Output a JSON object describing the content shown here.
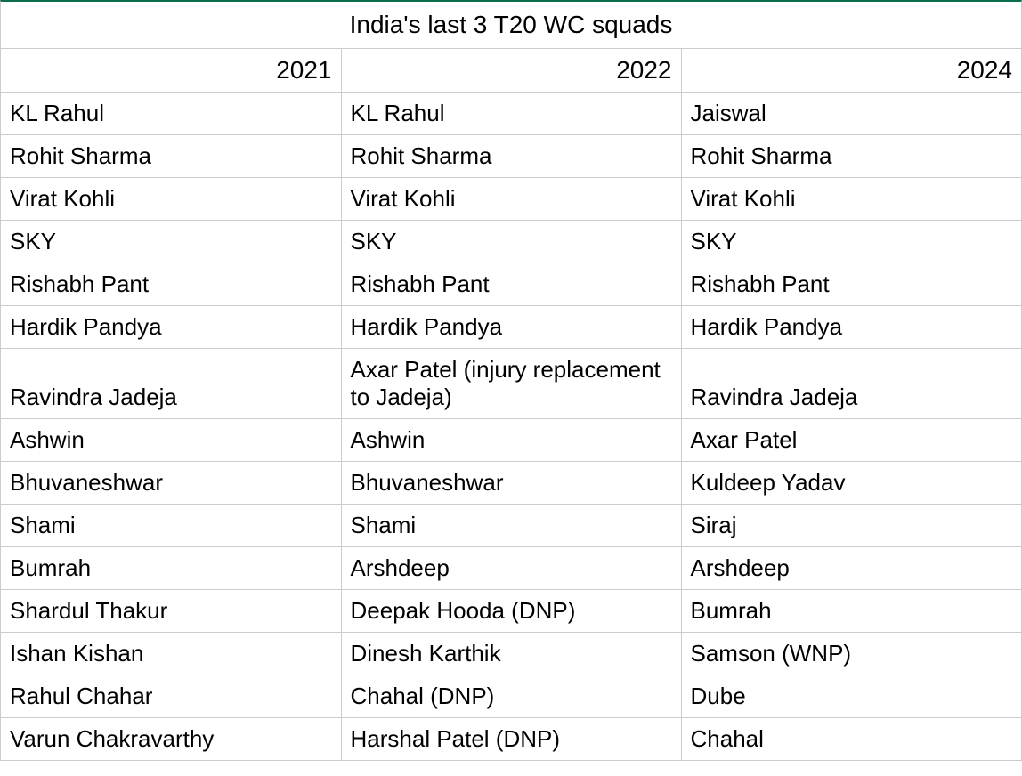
{
  "table": {
    "title": "India's last 3 T20 WC squads",
    "title_fontsize": 28,
    "header_fontsize": 28,
    "cell_fontsize": 26,
    "border_color": "#cccccc",
    "accent_color": "#0d6e4e",
    "background_color": "#ffffff",
    "text_color": "#000000",
    "columns": [
      "2021",
      "2022",
      "2024"
    ],
    "column_align_header": "right",
    "column_align_cells": "left",
    "rows": [
      [
        "KL Rahul",
        "KL Rahul",
        "Jaiswal"
      ],
      [
        "Rohit Sharma",
        "Rohit Sharma",
        "Rohit Sharma"
      ],
      [
        "Virat Kohli",
        "Virat Kohli",
        "Virat Kohli"
      ],
      [
        "SKY",
        "SKY",
        "SKY"
      ],
      [
        "Rishabh Pant",
        "Rishabh Pant",
        "Rishabh Pant"
      ],
      [
        "Hardik Pandya",
        "Hardik Pandya",
        "Hardik Pandya"
      ],
      [
        "Ravindra Jadeja",
        "Axar Patel (injury replacement to Jadeja)",
        "Ravindra Jadeja"
      ],
      [
        "Ashwin",
        "Ashwin",
        "Axar Patel"
      ],
      [
        "Bhuvaneshwar",
        "Bhuvaneshwar",
        "Kuldeep Yadav"
      ],
      [
        "Shami",
        "Shami",
        "Siraj"
      ],
      [
        "Bumrah",
        "Arshdeep",
        "Arshdeep"
      ],
      [
        "Shardul Thakur",
        "Deepak Hooda (DNP)",
        "Bumrah"
      ],
      [
        "Ishan Kishan",
        "Dinesh Karthik",
        "Samson (WNP)"
      ],
      [
        "Rahul Chahar",
        "Chahal (DNP)",
        "Dube"
      ],
      [
        "Varun Chakravarthy",
        "Harshal Patel (DNP)",
        "Chahal"
      ]
    ]
  }
}
